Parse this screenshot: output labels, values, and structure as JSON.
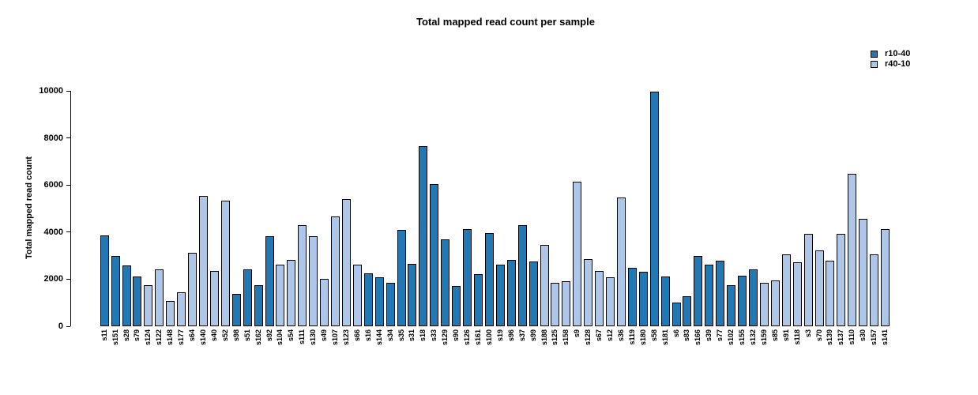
{
  "chart_data": {
    "type": "bar",
    "title": "Total mapped read count per sample",
    "ylabel": "Total mapped read count",
    "xlabel": "",
    "ylim": [
      0,
      10000
    ],
    "yticks": [
      0,
      2000,
      4000,
      6000,
      8000,
      10000
    ],
    "grid": false,
    "legend_position": "top-right",
    "legend": [
      "r10-40",
      "r40-10"
    ],
    "colors": {
      "r10-40": "#2078b4",
      "r40-10": "#aec7e8",
      "bar_border": "#000000"
    },
    "bars": [
      {
        "label": "s11",
        "value": 3870,
        "group": "r10-40"
      },
      {
        "label": "s151",
        "value": 2980,
        "group": "r10-40"
      },
      {
        "label": "s28",
        "value": 2570,
        "group": "r10-40"
      },
      {
        "label": "s79",
        "value": 2100,
        "group": "r10-40"
      },
      {
        "label": "s124",
        "value": 1730,
        "group": "r40-10"
      },
      {
        "label": "s122",
        "value": 2400,
        "group": "r40-10"
      },
      {
        "label": "s148",
        "value": 1070,
        "group": "r40-10"
      },
      {
        "label": "s177",
        "value": 1430,
        "group": "r40-10"
      },
      {
        "label": "s64",
        "value": 3110,
        "group": "r40-10"
      },
      {
        "label": "s140",
        "value": 5550,
        "group": "r40-10"
      },
      {
        "label": "s40",
        "value": 2340,
        "group": "r40-10"
      },
      {
        "label": "s52",
        "value": 5330,
        "group": "r40-10"
      },
      {
        "label": "s98",
        "value": 1360,
        "group": "r10-40"
      },
      {
        "label": "s51",
        "value": 2430,
        "group": "r10-40"
      },
      {
        "label": "s162",
        "value": 1760,
        "group": "r10-40"
      },
      {
        "label": "s92",
        "value": 3840,
        "group": "r10-40"
      },
      {
        "label": "s104",
        "value": 2630,
        "group": "r40-10"
      },
      {
        "label": "s54",
        "value": 2810,
        "group": "r40-10"
      },
      {
        "label": "s111",
        "value": 4290,
        "group": "r40-10"
      },
      {
        "label": "s130",
        "value": 3820,
        "group": "r40-10"
      },
      {
        "label": "s49",
        "value": 2000,
        "group": "r40-10"
      },
      {
        "label": "s107",
        "value": 4650,
        "group": "r40-10"
      },
      {
        "label": "s123",
        "value": 5390,
        "group": "r40-10"
      },
      {
        "label": "s66",
        "value": 2630,
        "group": "r40-10"
      },
      {
        "label": "s16",
        "value": 2260,
        "group": "r10-40"
      },
      {
        "label": "s144",
        "value": 2080,
        "group": "r10-40"
      },
      {
        "label": "s34",
        "value": 1840,
        "group": "r10-40"
      },
      {
        "label": "s35",
        "value": 4080,
        "group": "r10-40"
      },
      {
        "label": "s31",
        "value": 2660,
        "group": "r10-40"
      },
      {
        "label": "s18",
        "value": 7660,
        "group": "r10-40"
      },
      {
        "label": "s33",
        "value": 6030,
        "group": "r10-40"
      },
      {
        "label": "s129",
        "value": 3700,
        "group": "r10-40"
      },
      {
        "label": "s90",
        "value": 1700,
        "group": "r10-40"
      },
      {
        "label": "s126",
        "value": 4120,
        "group": "r10-40"
      },
      {
        "label": "s161",
        "value": 2230,
        "group": "r10-40"
      },
      {
        "label": "s100",
        "value": 3960,
        "group": "r10-40"
      },
      {
        "label": "s19",
        "value": 2630,
        "group": "r10-40"
      },
      {
        "label": "s96",
        "value": 2830,
        "group": "r10-40"
      },
      {
        "label": "s37",
        "value": 4280,
        "group": "r10-40"
      },
      {
        "label": "s99",
        "value": 2740,
        "group": "r10-40"
      },
      {
        "label": "s188",
        "value": 3450,
        "group": "r40-10"
      },
      {
        "label": "s125",
        "value": 1830,
        "group": "r40-10"
      },
      {
        "label": "s158",
        "value": 1910,
        "group": "r40-10"
      },
      {
        "label": "s9",
        "value": 6140,
        "group": "r40-10"
      },
      {
        "label": "s128",
        "value": 2850,
        "group": "r40-10"
      },
      {
        "label": "s67",
        "value": 2360,
        "group": "r40-10"
      },
      {
        "label": "s12",
        "value": 2090,
        "group": "r40-10"
      },
      {
        "label": "s36",
        "value": 5470,
        "group": "r40-10"
      },
      {
        "label": "s119",
        "value": 2480,
        "group": "r10-40"
      },
      {
        "label": "s180",
        "value": 2330,
        "group": "r10-40"
      },
      {
        "label": "s58",
        "value": 9950,
        "group": "r10-40"
      },
      {
        "label": "s181",
        "value": 2130,
        "group": "r10-40"
      },
      {
        "label": "s6",
        "value": 1010,
        "group": "r10-40"
      },
      {
        "label": "s83",
        "value": 1270,
        "group": "r10-40"
      },
      {
        "label": "s166",
        "value": 2970,
        "group": "r10-40"
      },
      {
        "label": "s39",
        "value": 2610,
        "group": "r10-40"
      },
      {
        "label": "s77",
        "value": 2770,
        "group": "r10-40"
      },
      {
        "label": "s102",
        "value": 1750,
        "group": "r10-40"
      },
      {
        "label": "s155",
        "value": 2160,
        "group": "r10-40"
      },
      {
        "label": "s132",
        "value": 2400,
        "group": "r10-40"
      },
      {
        "label": "s159",
        "value": 1830,
        "group": "r40-10"
      },
      {
        "label": "s85",
        "value": 1940,
        "group": "r40-10"
      },
      {
        "label": "s91",
        "value": 3040,
        "group": "r40-10"
      },
      {
        "label": "s118",
        "value": 2710,
        "group": "r40-10"
      },
      {
        "label": "s3",
        "value": 3930,
        "group": "r40-10"
      },
      {
        "label": "s70",
        "value": 3210,
        "group": "r40-10"
      },
      {
        "label": "s139",
        "value": 2800,
        "group": "r40-10"
      },
      {
        "label": "s137",
        "value": 3910,
        "group": "r40-10"
      },
      {
        "label": "s110",
        "value": 6490,
        "group": "r40-10"
      },
      {
        "label": "s30",
        "value": 4560,
        "group": "r40-10"
      },
      {
        "label": "s157",
        "value": 3040,
        "group": "r40-10"
      },
      {
        "label": "s141",
        "value": 4130,
        "group": "r40-10"
      }
    ]
  }
}
